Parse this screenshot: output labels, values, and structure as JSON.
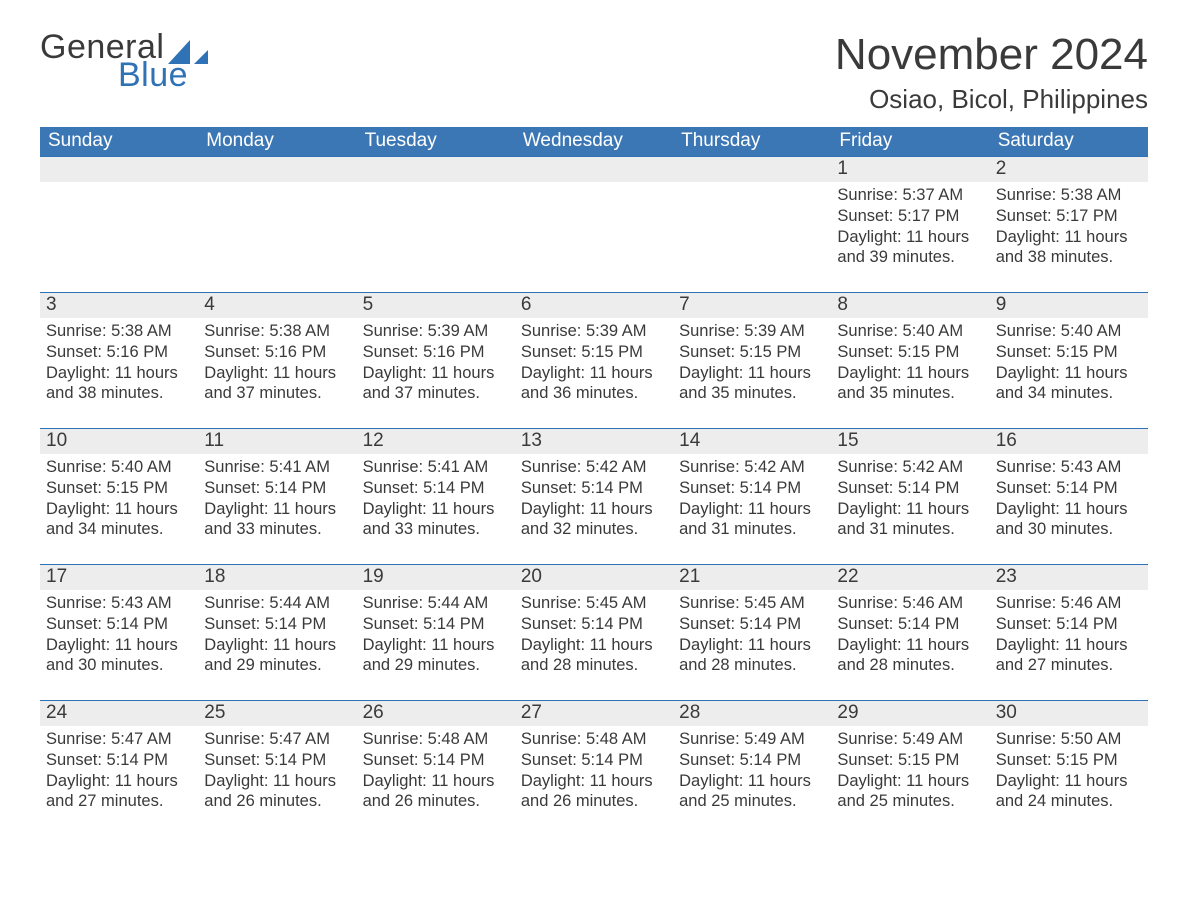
{
  "logo": {
    "top": "General",
    "bottom": "Blue"
  },
  "title": "November 2024",
  "location": "Osiao, Bicol, Philippines",
  "colors": {
    "header_bg": "#3c77b5",
    "header_text": "#ffffff",
    "row_border": "#2f73b6",
    "daynum_bg": "#ededed",
    "text": "#3a3a3a",
    "logo_accent": "#2f73b6"
  },
  "day_headers": [
    "Sunday",
    "Monday",
    "Tuesday",
    "Wednesday",
    "Thursday",
    "Friday",
    "Saturday"
  ],
  "weeks": [
    [
      {
        "empty": true
      },
      {
        "empty": true
      },
      {
        "empty": true
      },
      {
        "empty": true
      },
      {
        "empty": true
      },
      {
        "day": "1",
        "sunrise": "Sunrise: 5:37 AM",
        "sunset": "Sunset: 5:17 PM",
        "daylight": "Daylight: 11 hours and 39 minutes."
      },
      {
        "day": "2",
        "sunrise": "Sunrise: 5:38 AM",
        "sunset": "Sunset: 5:17 PM",
        "daylight": "Daylight: 11 hours and 38 minutes."
      }
    ],
    [
      {
        "day": "3",
        "sunrise": "Sunrise: 5:38 AM",
        "sunset": "Sunset: 5:16 PM",
        "daylight": "Daylight: 11 hours and 38 minutes."
      },
      {
        "day": "4",
        "sunrise": "Sunrise: 5:38 AM",
        "sunset": "Sunset: 5:16 PM",
        "daylight": "Daylight: 11 hours and 37 minutes."
      },
      {
        "day": "5",
        "sunrise": "Sunrise: 5:39 AM",
        "sunset": "Sunset: 5:16 PM",
        "daylight": "Daylight: 11 hours and 37 minutes."
      },
      {
        "day": "6",
        "sunrise": "Sunrise: 5:39 AM",
        "sunset": "Sunset: 5:15 PM",
        "daylight": "Daylight: 11 hours and 36 minutes."
      },
      {
        "day": "7",
        "sunrise": "Sunrise: 5:39 AM",
        "sunset": "Sunset: 5:15 PM",
        "daylight": "Daylight: 11 hours and 35 minutes."
      },
      {
        "day": "8",
        "sunrise": "Sunrise: 5:40 AM",
        "sunset": "Sunset: 5:15 PM",
        "daylight": "Daylight: 11 hours and 35 minutes."
      },
      {
        "day": "9",
        "sunrise": "Sunrise: 5:40 AM",
        "sunset": "Sunset: 5:15 PM",
        "daylight": "Daylight: 11 hours and 34 minutes."
      }
    ],
    [
      {
        "day": "10",
        "sunrise": "Sunrise: 5:40 AM",
        "sunset": "Sunset: 5:15 PM",
        "daylight": "Daylight: 11 hours and 34 minutes."
      },
      {
        "day": "11",
        "sunrise": "Sunrise: 5:41 AM",
        "sunset": "Sunset: 5:14 PM",
        "daylight": "Daylight: 11 hours and 33 minutes."
      },
      {
        "day": "12",
        "sunrise": "Sunrise: 5:41 AM",
        "sunset": "Sunset: 5:14 PM",
        "daylight": "Daylight: 11 hours and 33 minutes."
      },
      {
        "day": "13",
        "sunrise": "Sunrise: 5:42 AM",
        "sunset": "Sunset: 5:14 PM",
        "daylight": "Daylight: 11 hours and 32 minutes."
      },
      {
        "day": "14",
        "sunrise": "Sunrise: 5:42 AM",
        "sunset": "Sunset: 5:14 PM",
        "daylight": "Daylight: 11 hours and 31 minutes."
      },
      {
        "day": "15",
        "sunrise": "Sunrise: 5:42 AM",
        "sunset": "Sunset: 5:14 PM",
        "daylight": "Daylight: 11 hours and 31 minutes."
      },
      {
        "day": "16",
        "sunrise": "Sunrise: 5:43 AM",
        "sunset": "Sunset: 5:14 PM",
        "daylight": "Daylight: 11 hours and 30 minutes."
      }
    ],
    [
      {
        "day": "17",
        "sunrise": "Sunrise: 5:43 AM",
        "sunset": "Sunset: 5:14 PM",
        "daylight": "Daylight: 11 hours and 30 minutes."
      },
      {
        "day": "18",
        "sunrise": "Sunrise: 5:44 AM",
        "sunset": "Sunset: 5:14 PM",
        "daylight": "Daylight: 11 hours and 29 minutes."
      },
      {
        "day": "19",
        "sunrise": "Sunrise: 5:44 AM",
        "sunset": "Sunset: 5:14 PM",
        "daylight": "Daylight: 11 hours and 29 minutes."
      },
      {
        "day": "20",
        "sunrise": "Sunrise: 5:45 AM",
        "sunset": "Sunset: 5:14 PM",
        "daylight": "Daylight: 11 hours and 28 minutes."
      },
      {
        "day": "21",
        "sunrise": "Sunrise: 5:45 AM",
        "sunset": "Sunset: 5:14 PM",
        "daylight": "Daylight: 11 hours and 28 minutes."
      },
      {
        "day": "22",
        "sunrise": "Sunrise: 5:46 AM",
        "sunset": "Sunset: 5:14 PM",
        "daylight": "Daylight: 11 hours and 28 minutes."
      },
      {
        "day": "23",
        "sunrise": "Sunrise: 5:46 AM",
        "sunset": "Sunset: 5:14 PM",
        "daylight": "Daylight: 11 hours and 27 minutes."
      }
    ],
    [
      {
        "day": "24",
        "sunrise": "Sunrise: 5:47 AM",
        "sunset": "Sunset: 5:14 PM",
        "daylight": "Daylight: 11 hours and 27 minutes."
      },
      {
        "day": "25",
        "sunrise": "Sunrise: 5:47 AM",
        "sunset": "Sunset: 5:14 PM",
        "daylight": "Daylight: 11 hours and 26 minutes."
      },
      {
        "day": "26",
        "sunrise": "Sunrise: 5:48 AM",
        "sunset": "Sunset: 5:14 PM",
        "daylight": "Daylight: 11 hours and 26 minutes."
      },
      {
        "day": "27",
        "sunrise": "Sunrise: 5:48 AM",
        "sunset": "Sunset: 5:14 PM",
        "daylight": "Daylight: 11 hours and 26 minutes."
      },
      {
        "day": "28",
        "sunrise": "Sunrise: 5:49 AM",
        "sunset": "Sunset: 5:14 PM",
        "daylight": "Daylight: 11 hours and 25 minutes."
      },
      {
        "day": "29",
        "sunrise": "Sunrise: 5:49 AM",
        "sunset": "Sunset: 5:15 PM",
        "daylight": "Daylight: 11 hours and 25 minutes."
      },
      {
        "day": "30",
        "sunrise": "Sunrise: 5:50 AM",
        "sunset": "Sunset: 5:15 PM",
        "daylight": "Daylight: 11 hours and 24 minutes."
      }
    ]
  ]
}
